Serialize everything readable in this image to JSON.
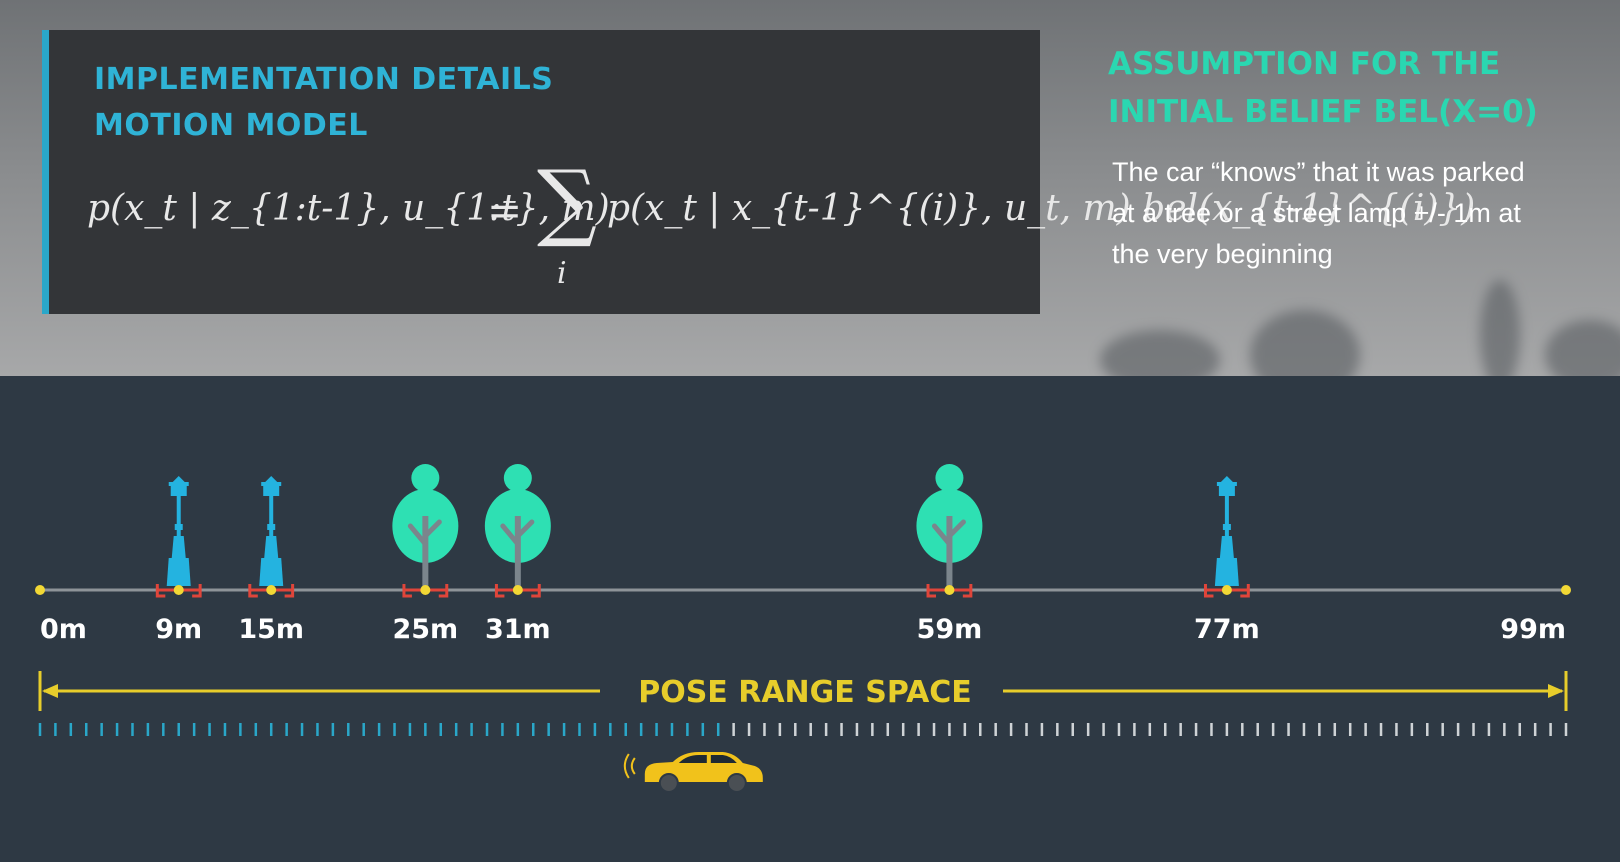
{
  "header": {
    "title_line1": "IMPLEMENTATION DETAILS",
    "title_line2": "MOTION MODEL"
  },
  "formula": {
    "lhs": "p(x_t | z_{1:t-1}, u_{1:t}, m)",
    "equals": "=",
    "sum_symbol": "∑",
    "sum_index": "i",
    "rhs": "p(x_t | x_{t-1}^{(i)}, u_t, m) bel(x_{t-1}^{(i)})"
  },
  "assumption": {
    "title_line1": "ASSUMPTION FOR THE",
    "title_line2": "INITIAL BELIEF BEL(X=0)",
    "text": "The car “knows” that it was parked at a tree or a street lamp +/- 1m at the very beginning"
  },
  "map": {
    "range_min": 0,
    "range_max": 99,
    "unit": "m",
    "axis_labels": [
      "0m",
      "9m",
      "15m",
      "25m",
      "31m",
      "59m",
      "77m",
      "99m"
    ],
    "landmarks": [
      {
        "type": "lamp",
        "position": 9,
        "label": "9m"
      },
      {
        "type": "lamp",
        "position": 15,
        "label": "15m"
      },
      {
        "type": "tree",
        "position": 25,
        "label": "25m"
      },
      {
        "type": "tree",
        "position": 31,
        "label": "31m"
      },
      {
        "type": "tree",
        "position": 59,
        "label": "59m"
      },
      {
        "type": "lamp",
        "position": 77,
        "label": "77m"
      }
    ],
    "endpoints": [
      {
        "position": 0,
        "label": "0m"
      },
      {
        "position": 99,
        "label": "99m"
      }
    ],
    "pose_range_label": "POSE RANGE SPACE",
    "pose_tick_count": 100,
    "highlighted_ticks_until": 45,
    "car_position": 43
  },
  "colors": {
    "accent_blue": "#2fb3d6",
    "accent_green": "#2ad7b1",
    "tree_green": "#2ee0b3",
    "lamp_blue": "#24b3e0",
    "range_yellow": "#e7cd2b",
    "car_yellow": "#f1c21b",
    "road_background": "#2e3944"
  }
}
